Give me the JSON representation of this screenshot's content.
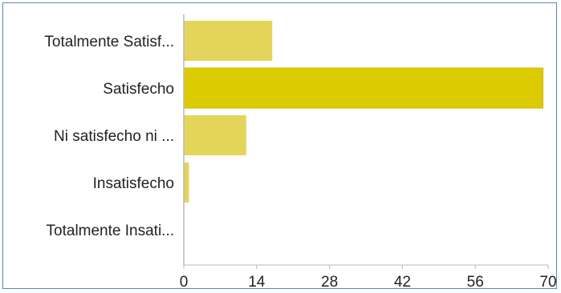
{
  "chart_data": {
    "type": "bar",
    "orientation": "horizontal",
    "categories": [
      "Totalmente Satisf...",
      "Satisfecho",
      "Ni satisfecho ni ...",
      "Insatisfecho",
      "Totalmente Insati..."
    ],
    "values": [
      17,
      69,
      12,
      1,
      0
    ],
    "xlim": [
      0,
      70
    ],
    "xticks": [
      "0",
      "14",
      "28",
      "42",
      "56",
      "70"
    ],
    "title": "",
    "xlabel": "",
    "ylabel": "",
    "grid": false,
    "legend": "none",
    "colors": {
      "highlight": "#dccb00",
      "highlight_edge": "#c9b800",
      "bar": "#e3d55a",
      "axis": "#b8b8b8",
      "frame": "#5b86c4"
    }
  }
}
